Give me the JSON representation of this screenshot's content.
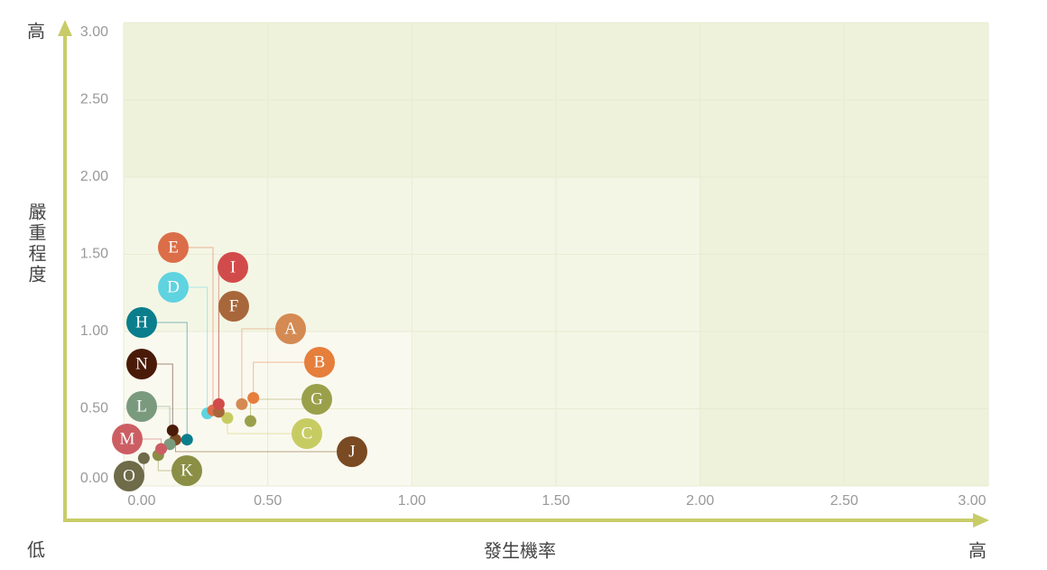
{
  "chart_data": {
    "type": "scatter",
    "y_axis_top_label": "高",
    "y_axis_title": "嚴重程度",
    "origin_label": "低",
    "x_axis_title": "發生機率",
    "x_axis_right_label": "高",
    "xlim": [
      0,
      3
    ],
    "ylim": [
      0,
      3
    ],
    "xticks": [
      {
        "value": 0,
        "label": "0.00"
      },
      {
        "value": 0.5,
        "label": "0.50"
      },
      {
        "value": 1,
        "label": "1.00"
      },
      {
        "value": 1.5,
        "label": "1.50"
      },
      {
        "value": 2,
        "label": "2.00"
      },
      {
        "value": 2.5,
        "label": "2.50"
      },
      {
        "value": 3,
        "label": "3.00"
      }
    ],
    "yticks": [
      {
        "value": 0,
        "label": "0.00"
      },
      {
        "value": 0.5,
        "label": "0.50"
      },
      {
        "value": 1,
        "label": "1.00"
      },
      {
        "value": 1.5,
        "label": "1.50"
      },
      {
        "value": 2,
        "label": "2.00"
      },
      {
        "value": 2.5,
        "label": "2.50"
      },
      {
        "value": 3,
        "label": "3.00"
      }
    ],
    "grid": true,
    "zones": [
      {
        "xmax": 3,
        "ymax": 3,
        "color": "#eff2da"
      },
      {
        "xmax": 2,
        "ymax": 2,
        "color": "#f4f6e5"
      },
      {
        "xmax": 1,
        "ymax": 1,
        "color": "#faf9ef"
      }
    ],
    "series": [
      {
        "name": "A",
        "color": "#d48a52",
        "x": 0.41,
        "y": 0.53
      },
      {
        "name": "B",
        "color": "#e67e3c",
        "x": 0.45,
        "y": 0.57
      },
      {
        "name": "C",
        "color": "#c7cc62",
        "x": 0.36,
        "y": 0.44
      },
      {
        "name": "D",
        "color": "#5fd3e0",
        "x": 0.29,
        "y": 0.47
      },
      {
        "name": "E",
        "color": "#db6e48",
        "x": 0.31,
        "y": 0.49
      },
      {
        "name": "F",
        "color": "#a8673b",
        "x": 0.33,
        "y": 0.48
      },
      {
        "name": "G",
        "color": "#9aa04a",
        "x": 0.44,
        "y": 0.42
      },
      {
        "name": "H",
        "color": "#0a7e8c",
        "x": 0.22,
        "y": 0.3
      },
      {
        "name": "I",
        "color": "#d24b4b",
        "x": 0.33,
        "y": 0.53
      },
      {
        "name": "J",
        "color": "#7a4a22",
        "x": 0.18,
        "y": 0.3
      },
      {
        "name": "K",
        "color": "#8a8f45",
        "x": 0.12,
        "y": 0.2
      },
      {
        "name": "L",
        "color": "#7a9a7e",
        "x": 0.16,
        "y": 0.27
      },
      {
        "name": "M",
        "color": "#cc5e63",
        "x": 0.13,
        "y": 0.24
      },
      {
        "name": "N",
        "color": "#4a1a08",
        "x": 0.17,
        "y": 0.36
      },
      {
        "name": "O",
        "color": "#6d6b48",
        "x": 0.07,
        "y": 0.18
      }
    ]
  }
}
